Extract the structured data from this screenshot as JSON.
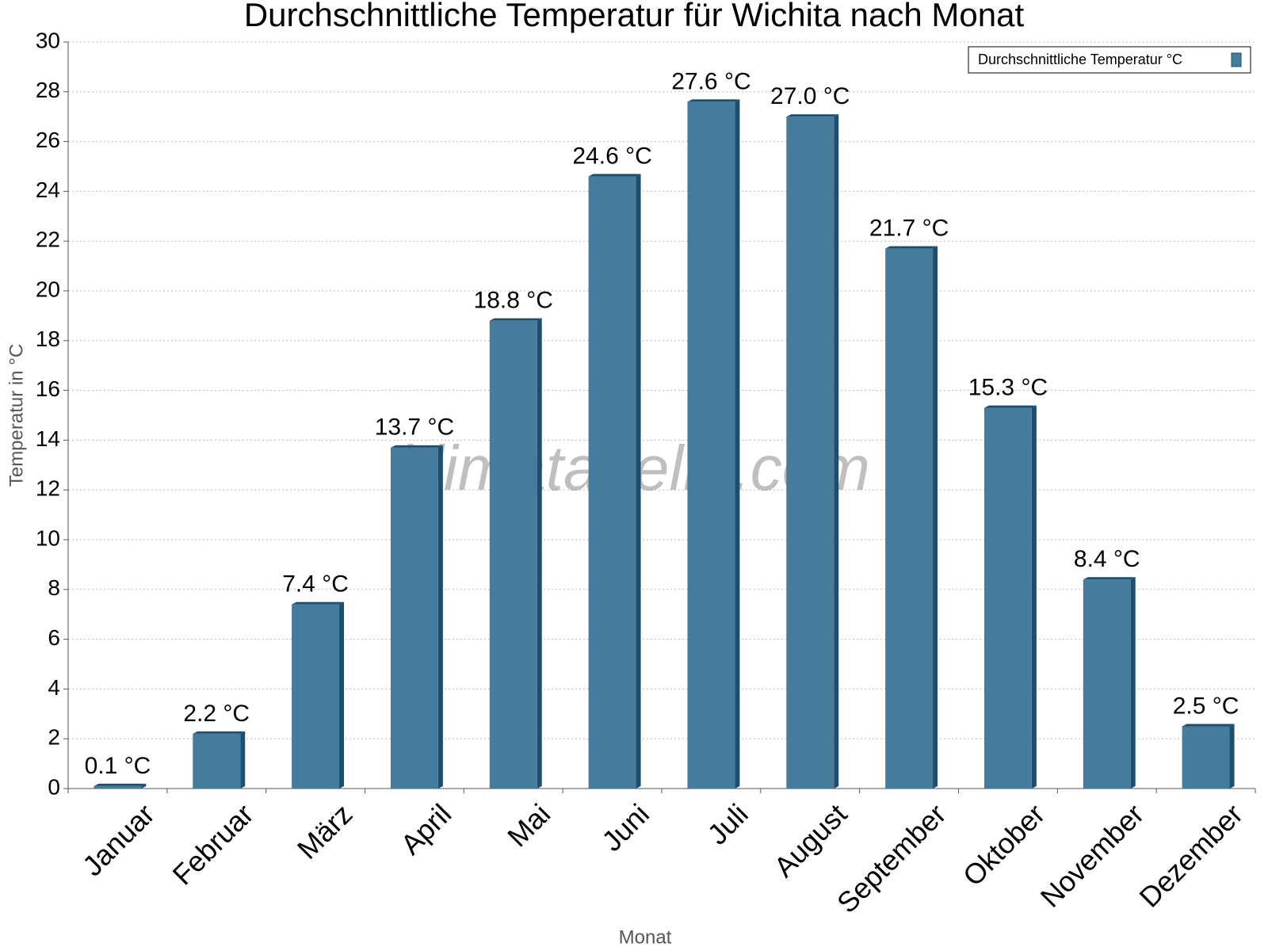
{
  "chart_data": {
    "type": "bar",
    "title": "Durchschnittliche Temperatur für Wichita nach Monat",
    "x_label": "Monat",
    "y_label": "Temperatur in °C",
    "watermark": "klimatabelle.com",
    "categories": [
      "Januar",
      "Februar",
      "März",
      "April",
      "Mai",
      "Juni",
      "Juli",
      "August",
      "September",
      "Oktober",
      "November",
      "Dezember"
    ],
    "series": [
      {
        "name": "Durchschnittliche Temperatur °C",
        "color": "#457b9d",
        "values": [
          0.1,
          2.2,
          7.4,
          13.7,
          18.8,
          24.6,
          27.6,
          27.0,
          21.7,
          15.3,
          8.4,
          2.5
        ],
        "value_labels": [
          "0.1 °C",
          "2.2 °C",
          "7.4 °C",
          "13.7 °C",
          "18.8 °C",
          "24.6 °C",
          "27.6 °C",
          "27.0 °C",
          "21.7 °C",
          "15.3 °C",
          "8.4 °C",
          "2.5 °C"
        ]
      }
    ],
    "ylim": [
      0,
      30
    ],
    "yticks": [
      0,
      2,
      4,
      6,
      8,
      10,
      12,
      14,
      16,
      18,
      20,
      22,
      24,
      26,
      28,
      30
    ],
    "grid": true,
    "legend": "top-right"
  }
}
